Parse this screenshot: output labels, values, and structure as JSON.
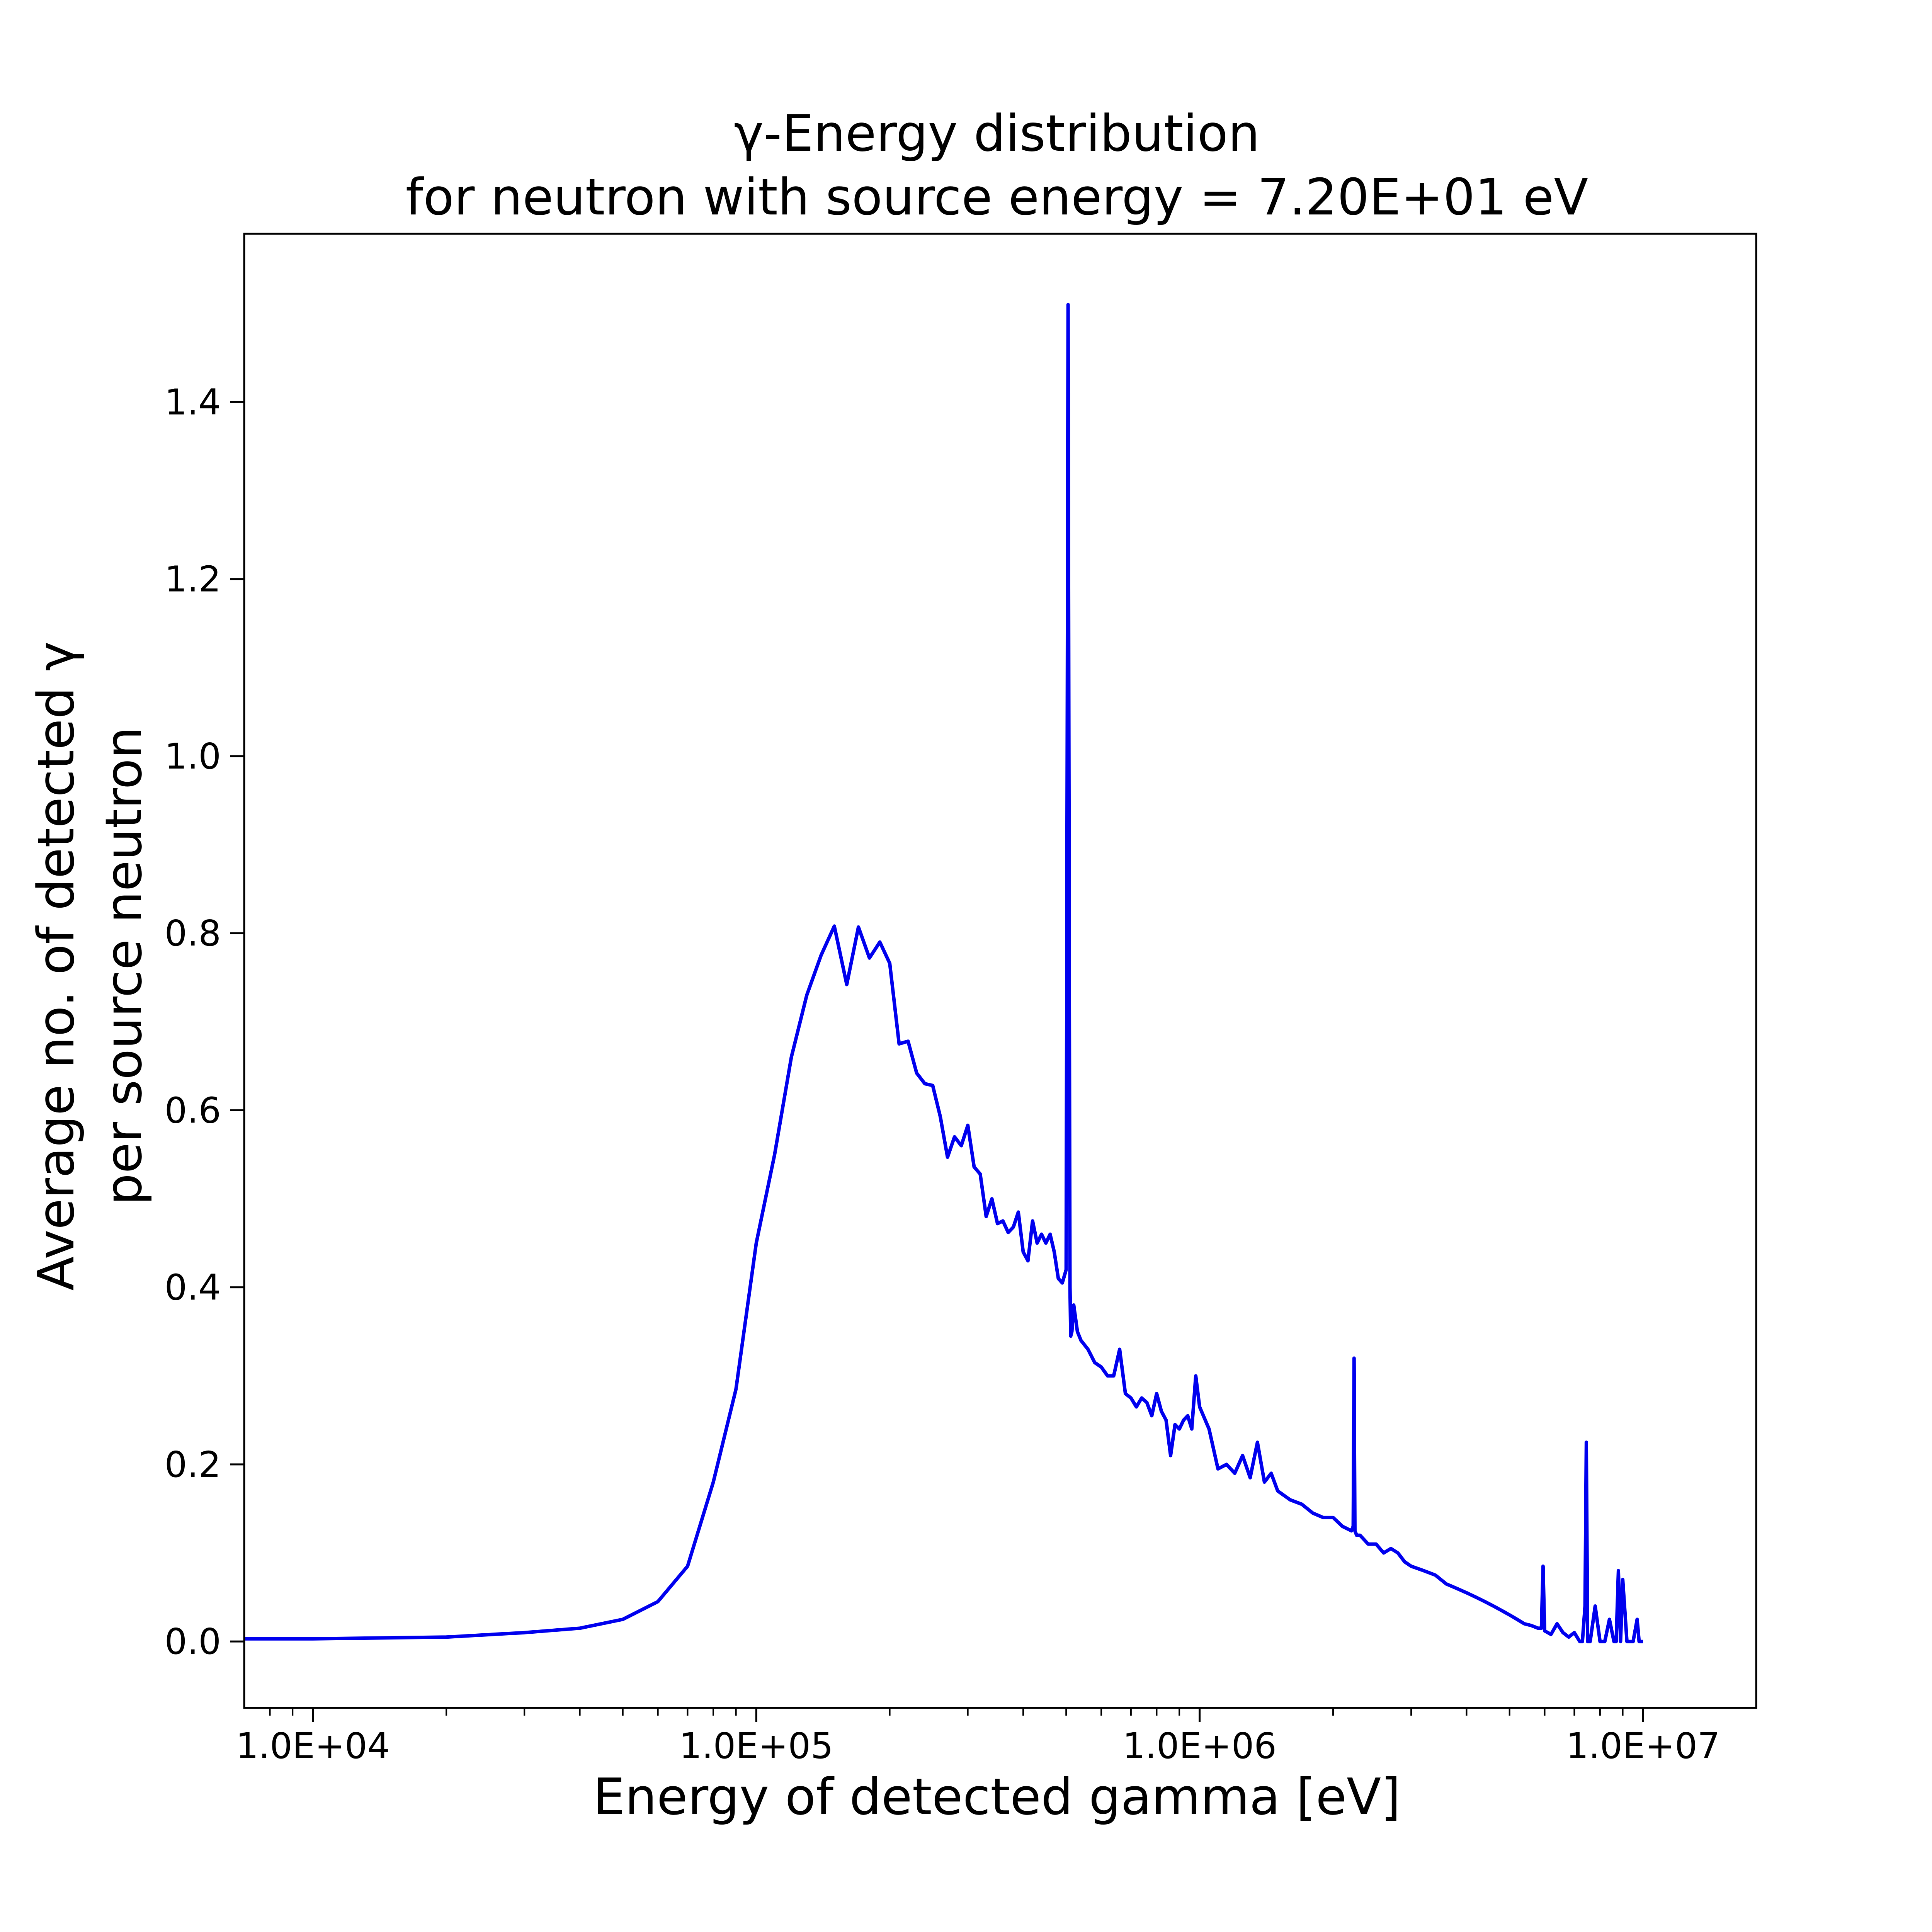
{
  "chart_data": {
    "type": "line",
    "title_line1": "γ-Energy distribution",
    "title_line2": "for neutron with source energy = 7.20E+01 eV",
    "xlabel": "Energy of detected gamma [eV]",
    "ylabel_line1": "Average no. of detected γ",
    "ylabel_line2": "per source neutron",
    "x_scale": "log",
    "xlim": [
      7000,
      18000000
    ],
    "ylim": [
      -0.075,
      1.59
    ],
    "grid": false,
    "line_color": "#0000ee",
    "x_ticks": [
      {
        "value": 10000,
        "label": "1.0E+04"
      },
      {
        "value": 100000,
        "label": "1.0E+05"
      },
      {
        "value": 1000000,
        "label": "1.0E+06"
      },
      {
        "value": 10000000,
        "label": "1.0E+07"
      }
    ],
    "y_ticks": [
      {
        "value": 0.0,
        "label": "0.0"
      },
      {
        "value": 0.2,
        "label": "0.2"
      },
      {
        "value": 0.4,
        "label": "0.4"
      },
      {
        "value": 0.6,
        "label": "0.6"
      },
      {
        "value": 0.8,
        "label": "0.8"
      },
      {
        "value": 1.0,
        "label": "1.0"
      },
      {
        "value": 1.2,
        "label": "1.2"
      },
      {
        "value": 1.4,
        "label": "1.4"
      }
    ],
    "series": [
      {
        "x": [
          7000,
          10000,
          20000,
          30000,
          40000,
          50000,
          60000,
          70000,
          80000,
          90000,
          100000,
          110000,
          120000,
          130000,
          140000,
          150000,
          160000,
          170000,
          180000,
          190000,
          200000,
          210000,
          220000,
          230000,
          240000,
          250000,
          260000,
          270000,
          280000,
          290000,
          300000,
          310000,
          320000,
          330000,
          340000,
          350000,
          360000,
          370000,
          380000,
          390000,
          400000,
          410000,
          420000,
          430000,
          440000,
          450000,
          460000,
          470000,
          480000,
          490000,
          500000,
          505000,
          508000,
          510000,
          512000,
          515000,
          520000,
          530000,
          540000,
          560000,
          580000,
          600000,
          620000,
          640000,
          660000,
          680000,
          700000,
          720000,
          740000,
          760000,
          780000,
          800000,
          820000,
          840000,
          860000,
          880000,
          900000,
          920000,
          940000,
          960000,
          980000,
          1000000,
          1050000,
          1100000,
          1150000,
          1200000,
          1250000,
          1300000,
          1350000,
          1400000,
          1450000,
          1500000,
          1600000,
          1700000,
          1800000,
          1900000,
          2000000,
          2100000,
          2200000,
          2220000,
          2230000,
          2240000,
          2260000,
          2300000,
          2400000,
          2500000,
          2600000,
          2700000,
          2800000,
          2900000,
          3000000,
          3200000,
          3400000,
          3600000,
          3800000,
          4000000,
          4200000,
          4400000,
          4600000,
          4800000,
          5000000,
          5200000,
          5400000,
          5600000,
          5800000,
          5900000,
          5950000,
          6000000,
          6100000,
          6200000,
          6400000,
          6600000,
          6800000,
          7000000,
          7200000,
          7300000,
          7400000,
          7450000,
          7500000,
          7600000,
          7800000,
          8000000,
          8200000,
          8400000,
          8600000,
          8700000,
          8800000,
          8900000,
          9000000,
          9200000,
          9500000,
          9700000,
          9800000,
          10000000
        ],
        "y": [
          0.003,
          0.003,
          0.005,
          0.01,
          0.015,
          0.025,
          0.045,
          0.085,
          0.18,
          0.285,
          0.45,
          0.55,
          0.66,
          0.73,
          0.775,
          0.808,
          0.742,
          0.807,
          0.772,
          0.79,
          0.766,
          0.675,
          0.678,
          0.642,
          0.63,
          0.628,
          0.593,
          0.547,
          0.57,
          0.56,
          0.583,
          0.536,
          0.528,
          0.48,
          0.5,
          0.472,
          0.475,
          0.462,
          0.468,
          0.485,
          0.44,
          0.43,
          0.475,
          0.45,
          0.46,
          0.45,
          0.46,
          0.44,
          0.41,
          0.405,
          0.42,
          1.51,
          0.8,
          0.4,
          0.345,
          0.35,
          0.38,
          0.35,
          0.34,
          0.33,
          0.315,
          0.31,
          0.3,
          0.3,
          0.33,
          0.28,
          0.275,
          0.265,
          0.275,
          0.27,
          0.255,
          0.28,
          0.26,
          0.25,
          0.21,
          0.245,
          0.24,
          0.25,
          0.255,
          0.24,
          0.3,
          0.265,
          0.24,
          0.195,
          0.2,
          0.19,
          0.21,
          0.185,
          0.225,
          0.18,
          0.19,
          0.17,
          0.16,
          0.155,
          0.145,
          0.14,
          0.14,
          0.13,
          0.125,
          0.13,
          0.32,
          0.125,
          0.12,
          0.12,
          0.11,
          0.11,
          0.1,
          0.105,
          0.1,
          0.09,
          0.085,
          0.08,
          0.075,
          0.065,
          0.06,
          0.055,
          0.05,
          0.045,
          0.04,
          0.035,
          0.03,
          0.025,
          0.02,
          0.018,
          0.015,
          0.015,
          0.085,
          0.012,
          0.01,
          0.008,
          0.02,
          0.01,
          0.005,
          0.01,
          0.0,
          0.0,
          0.04,
          0.225,
          0.0,
          0.0,
          0.04,
          0.0,
          0.0,
          0.025,
          0.0,
          0.0,
          0.08,
          0.0,
          0.07,
          0.0,
          0.0,
          0.025,
          0.0,
          0.0
        ]
      }
    ]
  }
}
